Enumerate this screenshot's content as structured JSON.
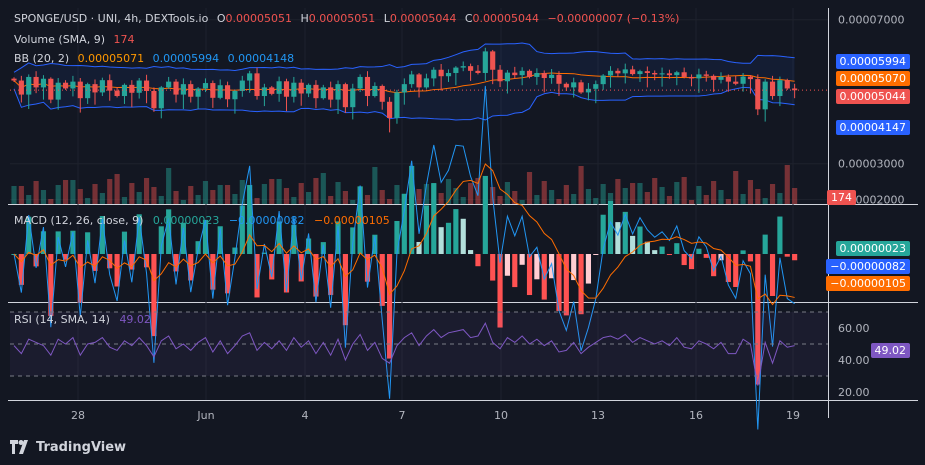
{
  "header": {
    "symbol": "SPONGE/USD · UNI, 4h, DEXTools.io",
    "o_label": "O",
    "o_value": "0.00005051",
    "h_label": "H",
    "h_value": "0.00005051",
    "l_label": "L",
    "l_value": "0.00005044",
    "c_label": "C",
    "c_value": "0.00005044",
    "change": "−0.00000007 (−0.13%)"
  },
  "volume_legend": {
    "label": "Volume (SMA, 9)",
    "value": "174"
  },
  "bb_legend": {
    "label": "BB (20, 2)",
    "basis": "0.00005071",
    "upper": "0.00005994",
    "lower": "0.00004148"
  },
  "macd_legend": {
    "label": "MACD (12, 26, close, 9)",
    "hist": "0.00000023",
    "macd": "−0.00000082",
    "signal": "−0.00000105"
  },
  "rsi_legend": {
    "label": "RSI (14, SMA, 14)",
    "value": "49.02"
  },
  "price_tags": {
    "upper": "0.00005994",
    "basis": "0.00005070",
    "last": "0.00005044",
    "lower": "0.00004147",
    "volume": "174"
  },
  "macd_tags": {
    "hist": "0.00000023",
    "macd": "−0.00000082",
    "signal": "−0.00000105"
  },
  "rsi_tag": "49.02",
  "footer": {
    "brand": "TradingView"
  },
  "colors": {
    "up": "#26a69a",
    "down": "#ef5350",
    "bb_band": "#2962ff",
    "bb_basis": "#ff6d00",
    "rsi": "#7e57c2",
    "macd_line": "#2196f3",
    "signal_line": "#ff6d00",
    "hist_up_strong": "#26a69a",
    "hist_up_weak": "#b2dfdb",
    "hist_down_strong": "#ff5252",
    "hist_down_weak": "#ffcdd2"
  },
  "chart_data": [
    {
      "type": "candlestick",
      "title": "SPONGE/USD · UNI, 4h, DEXTools.io",
      "y_ticks": [
        "0.00007000",
        "0.00003000",
        "0.00002000"
      ],
      "x_ticks": [
        "28",
        "Jun",
        "4",
        "7",
        "10",
        "13",
        "16",
        "19"
      ],
      "close_path": [
        5.31e-05,
        4.92e-05,
        5.41e-05,
        5.12e-05,
        5.36e-05,
        4.78e-05,
        5.25e-05,
        5.09e-05,
        5.28e-05,
        4.82e-05,
        5.21e-05,
        4.98e-05,
        5.32e-05,
        5.03e-05,
        4.88e-05,
        5.19e-05,
        4.97e-05,
        5.31e-05,
        5.02e-05,
        4.54e-05,
        5.12e-05,
        5.28e-05,
        4.92e-05,
        5.21e-05,
        4.86e-05,
        5.09e-05,
        5.24e-05,
        4.83e-05,
        5.18e-05,
        4.79e-05,
        5.02e-05,
        5.31e-05,
        5.51e-05,
        4.88e-05,
        5.12e-05,
        4.94e-05,
        5.29e-05,
        4.86e-05,
        5.25e-05,
        4.95e-05,
        5.19e-05,
        4.82e-05,
        5.12e-05,
        4.78e-05,
        5.21e-05,
        4.57e-05,
        5.09e-05,
        5.41e-05,
        4.88e-05,
        5.16e-05,
        4.72e-05,
        4.27e-05,
        4.98e-05,
        5.21e-05,
        5.48e-05,
        5.12e-05,
        5.37e-05,
        5.61e-05,
        5.43e-05,
        5.52e-05,
        5.67e-05,
        5.71e-05,
        5.58e-05,
        5.52e-05,
        6.12e-05,
        5.61e-05,
        5.29e-05,
        5.53e-05,
        5.46e-05,
        5.58e-05,
        5.41e-05,
        5.52e-05,
        5.38e-05,
        5.47e-05,
        5.22e-05,
        5.12e-05,
        5.26e-05,
        4.98e-05,
        5.08e-05,
        5.21e-05,
        5.45e-05,
        5.58e-05,
        5.51e-05,
        5.62e-05,
        5.49e-05,
        5.57e-05,
        5.52e-05,
        5.48e-05,
        5.51e-05,
        5.46e-05,
        5.54e-05,
        5.41e-05,
        5.37e-05,
        5.48e-05,
        5.44e-05,
        5.33e-05,
        5.41e-05,
        5.28e-05,
        5.22e-05,
        5.42e-05,
        5.35e-05,
        4.51e-05,
        5.28e-05,
        4.88e-05,
        5.32e-05,
        5.09e-05,
        5.04e-05
      ],
      "bb_upper": 5.994e-05,
      "bb_basis": 5.071e-05,
      "bb_lower": 4.148e-05,
      "volume_sma": 174
    },
    {
      "type": "line",
      "title": "MACD (12, 26, close, 9)",
      "series": [
        {
          "name": "Histogram",
          "last": 2.3e-07
        },
        {
          "name": "MACD",
          "last": -8.2e-07
        },
        {
          "name": "Signal",
          "last": -1.05e-06
        }
      ]
    },
    {
      "type": "line",
      "title": "RSI (14, SMA, 14)",
      "y_ticks": [
        "60.00",
        "40.00",
        "20.00"
      ],
      "ylim": [
        15,
        75
      ],
      "series": [
        {
          "name": "RSI",
          "last": 49.02,
          "values": [
            49,
            44,
            53,
            51,
            49,
            43,
            53,
            50,
            54,
            43,
            50,
            51,
            54,
            48,
            46,
            52,
            49,
            54,
            49,
            42,
            52,
            55,
            47,
            50,
            46,
            51,
            54,
            45,
            52,
            44,
            49,
            55,
            57,
            46,
            51,
            47,
            52,
            46,
            54,
            48,
            52,
            44,
            51,
            43,
            53,
            40,
            50,
            56,
            46,
            51,
            41,
            38,
            49,
            54,
            57,
            49,
            55,
            59,
            54,
            57,
            58,
            59,
            54,
            55,
            63,
            51,
            47,
            54,
            51,
            55,
            50,
            53,
            49,
            52,
            45,
            46,
            51,
            44,
            48,
            51,
            54,
            55,
            53,
            56,
            51,
            54,
            52,
            50,
            52,
            49,
            54,
            48,
            47,
            52,
            50,
            47,
            51,
            44,
            44,
            53,
            50,
            24,
            51,
            38,
            52,
            48,
            49
          ]
        }
      ]
    }
  ]
}
